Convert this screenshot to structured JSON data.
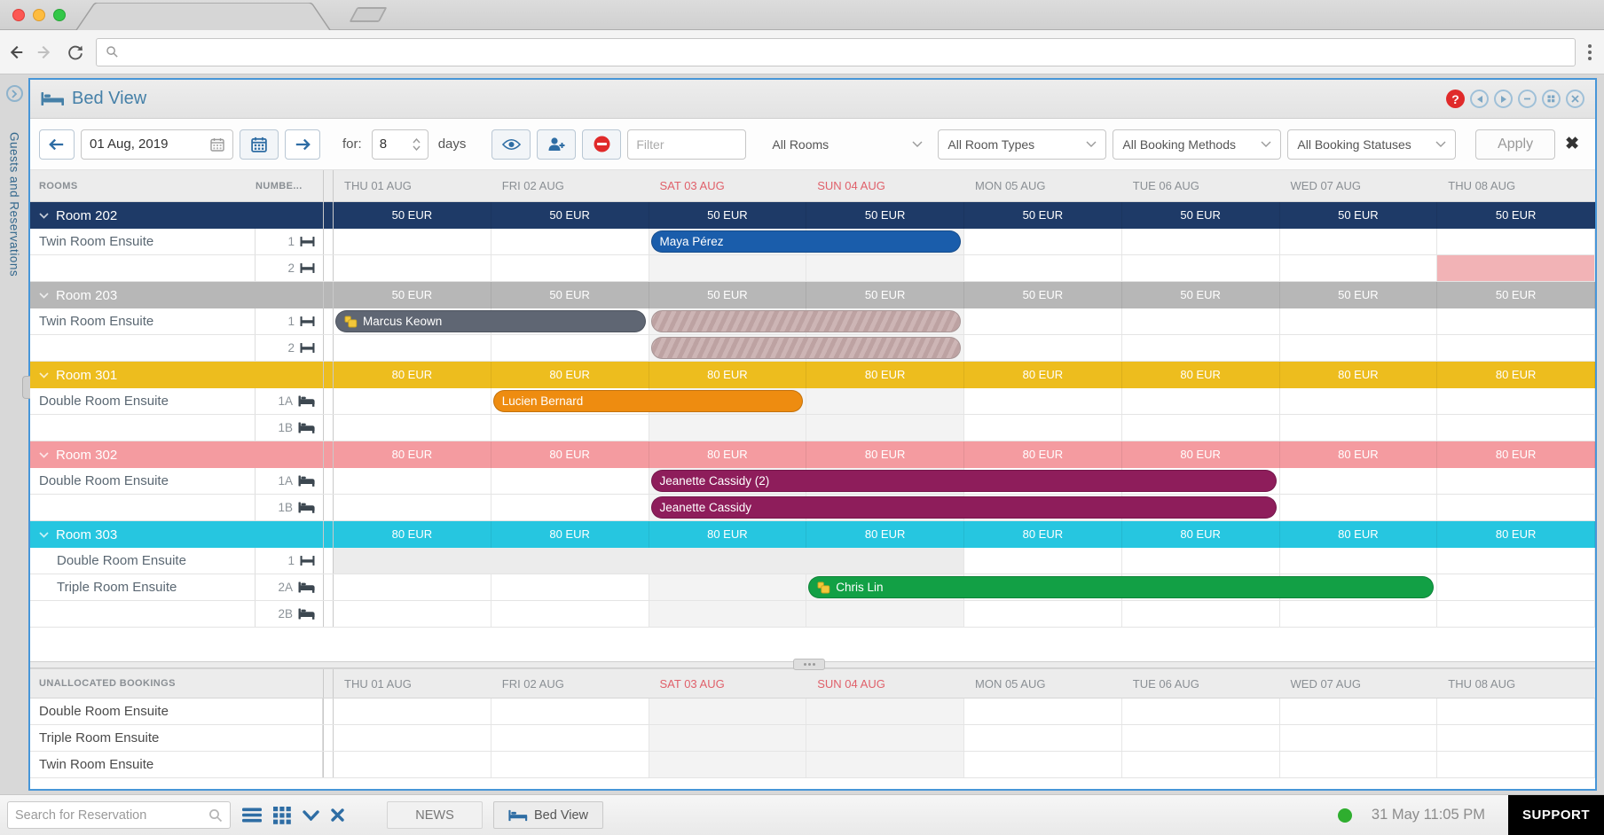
{
  "sidebar": {
    "label": "Guests and Reservations"
  },
  "titlebar": {
    "title": "Bed View",
    "icons": [
      "help-icon",
      "circle-prev-icon",
      "circle-next-icon",
      "circle-minimize-icon",
      "circle-grid-icon",
      "circle-close-icon"
    ]
  },
  "toolbar": {
    "date_value": "01 Aug, 2019",
    "for_label": "for:",
    "days_value": "8",
    "days_label": "days",
    "filter_placeholder": "Filter",
    "selects": [
      {
        "value": "All Rooms"
      },
      {
        "value": "All Room Types"
      },
      {
        "value": "All Booking Methods"
      },
      {
        "value": "All Booking Statuses"
      }
    ],
    "apply_label": "Apply",
    "clear_label": "✖"
  },
  "grid": {
    "rooms_header": "ROOMS",
    "number_header": "NUMBE...",
    "weekend_text_color": "#e0606a",
    "weekend_bg_color": "#f3f3f3",
    "dates": [
      {
        "label": "THU 01 AUG",
        "weekend": false
      },
      {
        "label": "FRI 02 AUG",
        "weekend": false
      },
      {
        "label": "SAT 03 AUG",
        "weekend": true
      },
      {
        "label": "SUN 04 AUG",
        "weekend": true
      },
      {
        "label": "MON 05 AUG",
        "weekend": false
      },
      {
        "label": "TUE 06 AUG",
        "weekend": false
      },
      {
        "label": "WED 07 AUG",
        "weekend": false
      },
      {
        "label": "THU 08 AUG",
        "weekend": false
      }
    ],
    "rows": [
      {
        "type": "room",
        "name": "Room 202",
        "rate": "50 EUR",
        "color": "#1e3a67"
      },
      {
        "type": "bed",
        "name": "Twin Room Ensuite",
        "number": "1",
        "bed": "single",
        "bars": [
          {
            "kind": "bar",
            "label": "Maya Pérez",
            "start": 2,
            "span": 2,
            "color": "#1a5dab",
            "key": false
          }
        ]
      },
      {
        "type": "bed",
        "name": "",
        "number": "2",
        "bed": "single",
        "bars": [
          {
            "kind": "block",
            "start": 7,
            "span": 1,
            "color": "#f2b3b6"
          }
        ]
      },
      {
        "type": "room",
        "name": "Room 203",
        "rate": "50 EUR",
        "color": "#b7b7b7"
      },
      {
        "type": "bed",
        "name": "Twin Room Ensuite",
        "number": "1",
        "bed": "single",
        "bars": [
          {
            "kind": "bar",
            "label": "Marcus Keown",
            "start": 0,
            "span": 2,
            "color": "#5f6673",
            "key": true
          },
          {
            "kind": "hatched",
            "start": 2,
            "span": 2
          }
        ]
      },
      {
        "type": "bed",
        "name": "",
        "number": "2",
        "bed": "single",
        "bars": [
          {
            "kind": "hatched",
            "start": 2,
            "span": 2
          }
        ]
      },
      {
        "type": "room",
        "name": "Room 301",
        "rate": "80 EUR",
        "color": "#edbd1e"
      },
      {
        "type": "bed",
        "name": "Double Room Ensuite",
        "number": "1A",
        "bed": "double",
        "bars": [
          {
            "kind": "bar",
            "label": "Lucien Bernard",
            "start": 1,
            "span": 2,
            "color": "#ee8c10",
            "key": false
          }
        ]
      },
      {
        "type": "bed",
        "name": "",
        "number": "1B",
        "bed": "double",
        "bars": []
      },
      {
        "type": "room",
        "name": "Room 302",
        "rate": "80 EUR",
        "color": "#f49ba0"
      },
      {
        "type": "bed",
        "name": "Double Room Ensuite",
        "number": "1A",
        "bed": "double",
        "bars": [
          {
            "kind": "bar",
            "label": "Jeanette Cassidy (2)",
            "start": 2,
            "span": 4,
            "color": "#8e1d5b",
            "key": false
          }
        ]
      },
      {
        "type": "bed",
        "name": "",
        "number": "1B",
        "bed": "double",
        "bars": [
          {
            "kind": "bar",
            "label": "Jeanette Cassidy",
            "start": 2,
            "span": 4,
            "color": "#8e1d5b",
            "key": false
          }
        ]
      },
      {
        "type": "room",
        "name": "Room 303",
        "rate": "80 EUR",
        "color": "#26c6e0"
      },
      {
        "type": "bed",
        "name": "Double Room Ensuite",
        "number": "1",
        "bed": "single",
        "indent": true,
        "bars": [
          {
            "kind": "block",
            "start": 0,
            "span": 4,
            "color": "#ececec"
          }
        ]
      },
      {
        "type": "bed",
        "name": "Triple Room Ensuite",
        "number": "2A",
        "bed": "double",
        "indent": true,
        "bars": [
          {
            "kind": "bar",
            "label": "Chris Lin",
            "start": 3,
            "span": 4,
            "color": "#12a045",
            "key": true
          }
        ]
      },
      {
        "type": "bed",
        "name": "",
        "number": "2B",
        "bed": "double",
        "bars": []
      }
    ],
    "unallocated": {
      "header": "UNALLOCATED BOOKINGS",
      "rows": [
        "Double Room Ensuite",
        "Triple Room Ensuite",
        "Twin Room Ensuite"
      ]
    }
  },
  "statusbar": {
    "search_placeholder": "Search for Reservation",
    "news_label": "NEWS",
    "bedview_label": "Bed View",
    "time": "31 May 11:05 PM",
    "support_label": "SUPPORT",
    "online_color": "#2fae2f"
  },
  "icons": {
    "bed": "bed-icon",
    "search": "search-icon",
    "calendar": "calendar-icon",
    "eye": "eye-icon",
    "add_person": "add-person-icon",
    "no_entry": "no-entry-icon",
    "key": "key-icon",
    "single_bed": "single-bed-icon",
    "double_bed": "double-bed-icon",
    "menu": "hamburger-icon",
    "grid": "grid-icon",
    "chevron_down": "chevron-down-icon",
    "close": "close-icon"
  },
  "colors": {
    "accent_blue": "#2e6da4",
    "app_border": "#4796d8",
    "title_text": "#4580a8"
  }
}
